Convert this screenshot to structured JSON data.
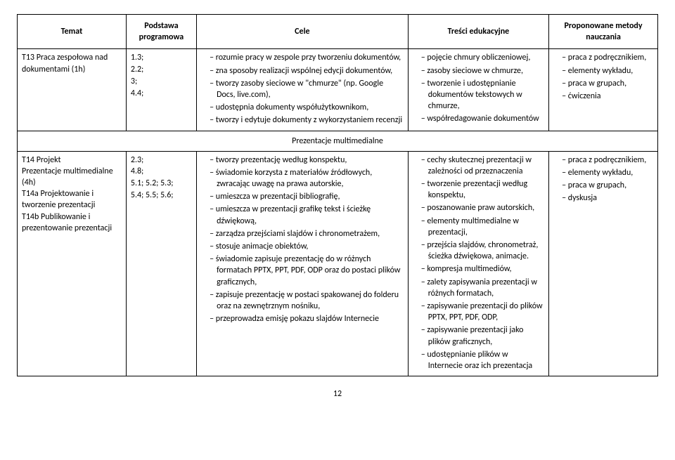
{
  "headers": {
    "topic": "Temat",
    "basis": "Podstawa programowa",
    "goals": "Cele",
    "content": "Treści edukacyjne",
    "methods": "Proponowane metody nauczania"
  },
  "row1": {
    "topic": "T13 Praca zespołowa nad dokumentami (1h)",
    "basis": "1.3;\n2.2;\n3;\n4.4;",
    "goals": [
      "rozumie pracy w zespole przy tworzeniu dokumentów,",
      "zna sposoby realizacji wspólnej edycji dokumentów,",
      "tworzy zasoby sieciowe w \"chmurze\" (np. Google Docs, live.com),",
      "udostępnia dokumenty współużytkownikom,",
      "tworzy i edytuje dokumenty z wykorzystaniem recenzji"
    ],
    "content": [
      "pojęcie chmury obliczeniowej,",
      "zasoby sieciowe w chmurze,",
      "tworzenie i udostępnianie dokumentów tekstowych w chmurze,",
      "współredagowanie dokumentów"
    ],
    "methods": [
      "praca z podręcznikiem,",
      "elementy wykładu,",
      "praca w grupach,",
      "ćwiczenia"
    ]
  },
  "sectionTitle": "Prezentacje multimedialne",
  "row2": {
    "topic": "T14 Projekt\nPrezentacje multimedialne (4h)\nT14a Projektowanie i tworzenie prezentacji\nT14b Publikowanie i prezentowanie prezentacji",
    "basis": "2.3;\n4.8;\n5.1; 5.2; 5.3;\n5.4; 5.5; 5.6;",
    "goals": [
      "tworzy prezentację według konspektu,",
      "świadomie korzysta z materiałów źródłowych, zwracając uwagę na prawa autorskie,",
      "umieszcza w prezentacji bibliografię,",
      "umieszcza w prezentacji grafikę tekst i ścieżkę dźwiękową,",
      "zarządza przejściami slajdów i chronometrażem,",
      "stosuje animacje obiektów,",
      "świadomie zapisuje prezentację do w różnych formatach PPTX, PPT, PDF, ODP oraz do postaci plików graficznych,",
      "zapisuje prezentację w postaci spakowanej do folderu oraz na zewnętrznym nośniku,",
      "przeprowadza emisję pokazu slajdów Internecie"
    ],
    "content": [
      "cechy skutecznej prezentacji w zależności od przeznaczenia",
      "tworzenie prezentacji według konspektu,",
      "poszanowanie praw autorskich,",
      "elementy multimedialne w prezentacji,",
      "przejścia slajdów, chronometraż, ścieżka dźwiękowa, animacje.",
      "kompresja multimediów,",
      "zalety zapisywania prezentacji w różnych formatach,",
      "zapisywanie prezentacji do plików PPTX, PPT, PDF, ODP,",
      "zapisywanie prezentacji jako plików graficznych,",
      "udostępnianie plików w Internecie oraz ich prezentacja"
    ],
    "methods": [
      "praca z podręcznikiem,",
      "elementy wykładu,",
      "praca w grupach,",
      "dyskusja"
    ]
  },
  "pageNumber": "12"
}
